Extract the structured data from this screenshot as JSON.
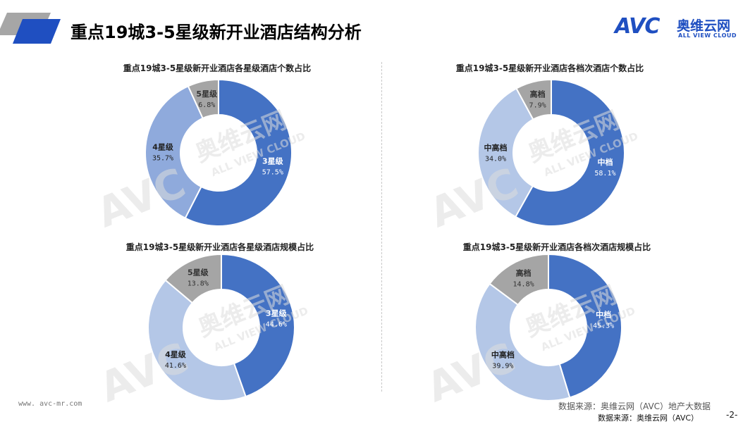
{
  "header": {
    "title": "重点19城3-5星级新开业酒店结构分析",
    "logo_text": "AVC",
    "logo_cn": "奥维云网",
    "logo_en": "ALL VIEW CLOUD",
    "accent_color": "#1f4fc1"
  },
  "watermark": {
    "logo": "AVC",
    "cn": "奥维云网",
    "en": "ALL VIEW CLOUD"
  },
  "chart_data": [
    {
      "type": "pie",
      "donut": true,
      "title": "重点19城3-5星级新开业酒店各星级酒店个数占比",
      "series": [
        {
          "name": "3星级",
          "value": 57.5,
          "label": "57.5%",
          "color": "#4472c4"
        },
        {
          "name": "4星级",
          "value": 35.7,
          "label": "35.7%",
          "color": "#8faadc"
        },
        {
          "name": "5星级",
          "value": 6.8,
          "label": "6.8%",
          "color": "#a5a5a5"
        }
      ]
    },
    {
      "type": "pie",
      "donut": true,
      "title": "重点19城3-5星级新开业酒店各档次酒店个数占比",
      "series": [
        {
          "name": "中档",
          "value": 58.1,
          "label": "58.1%",
          "color": "#4472c4"
        },
        {
          "name": "中高档",
          "value": 34.0,
          "label": "34.0%",
          "color": "#b4c7e7"
        },
        {
          "name": "高档",
          "value": 7.9,
          "label": "7.9%",
          "color": "#a5a5a5"
        }
      ]
    },
    {
      "type": "pie",
      "donut": true,
      "title": "重点19城3-5星级新开业酒店各星级酒店规模占比",
      "series": [
        {
          "name": "3星级",
          "value": 44.6,
          "label": "44.6%",
          "color": "#4472c4"
        },
        {
          "name": "4星级",
          "value": 41.6,
          "label": "41.6%",
          "color": "#b4c7e7"
        },
        {
          "name": "5星级",
          "value": 13.8,
          "label": "13.8%",
          "color": "#a5a5a5"
        }
      ]
    },
    {
      "type": "pie",
      "donut": true,
      "title": "重点19城3-5星级新开业酒店各档次酒店规模占比",
      "series": [
        {
          "name": "中档",
          "value": 45.3,
          "label": "45.3%",
          "color": "#4472c4"
        },
        {
          "name": "中高档",
          "value": 39.9,
          "label": "39.9%",
          "color": "#b4c7e7"
        },
        {
          "name": "高档",
          "value": 14.8,
          "label": "14.8%",
          "color": "#a5a5a5"
        }
      ]
    }
  ],
  "footer": {
    "website": "www. avc-mr.com",
    "source_primary": "数据来源：奥维云网（AVC）地产大数据",
    "source_secondary": "数据来源：奥维云网（AVC）",
    "page_number": "-2-"
  }
}
